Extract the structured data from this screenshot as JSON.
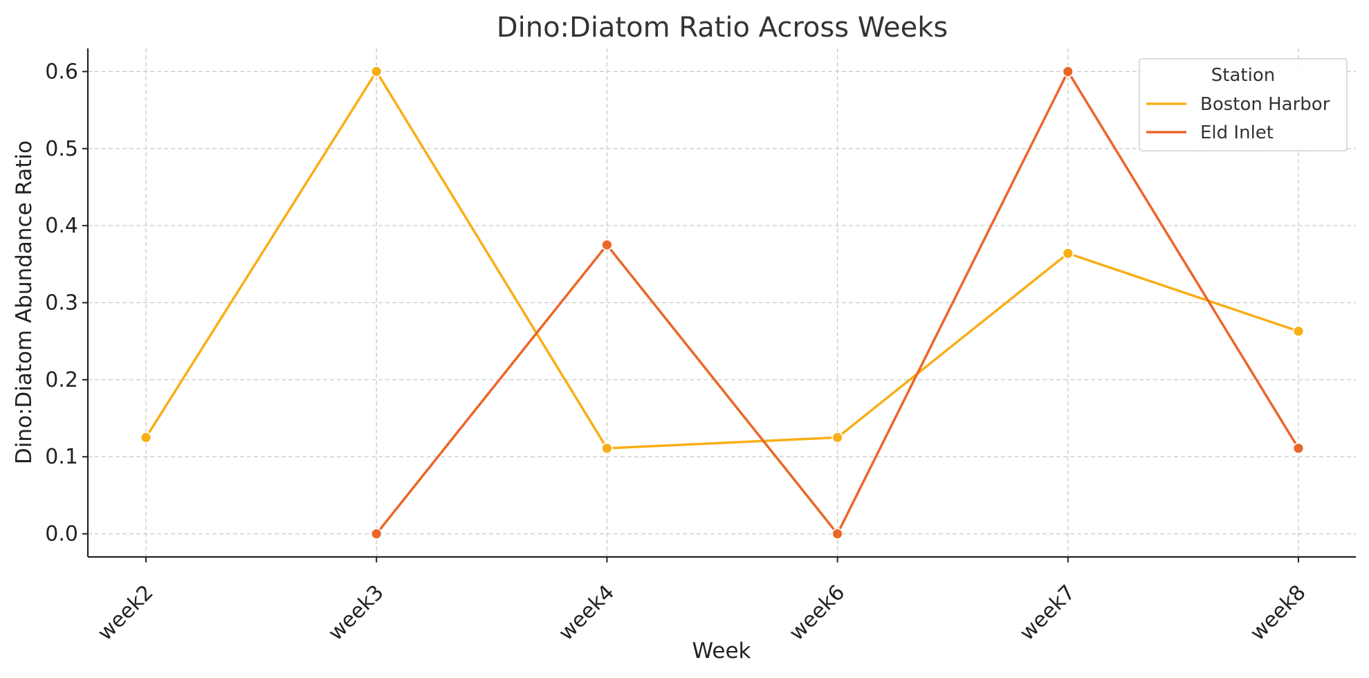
{
  "chart_data": {
    "type": "line",
    "title": "Dino:Diatom Ratio Across Weeks",
    "xlabel": "Week",
    "ylabel": "Dino:Diatom Abundance Ratio",
    "categories": [
      "week2",
      "week3",
      "week4",
      "week6",
      "week7",
      "week8"
    ],
    "ylim": [
      -0.03,
      0.63
    ],
    "yticks": [
      0.0,
      0.1,
      0.2,
      0.3,
      0.4,
      0.5,
      0.6
    ],
    "ytick_labels": [
      "0.0",
      "0.1",
      "0.2",
      "0.3",
      "0.4",
      "0.5",
      "0.6"
    ],
    "grid": true,
    "legend": {
      "title": "Station",
      "placement": "top-right"
    },
    "series": [
      {
        "name": "Boston Harbor",
        "color": "#F9AE16",
        "values": [
          0.125,
          0.6,
          0.111,
          0.125,
          0.364,
          0.263
        ]
      },
      {
        "name": "Eld Inlet",
        "color": "#EB6628",
        "values": [
          null,
          0.0,
          0.375,
          0.0,
          0.6,
          0.111
        ]
      }
    ]
  }
}
